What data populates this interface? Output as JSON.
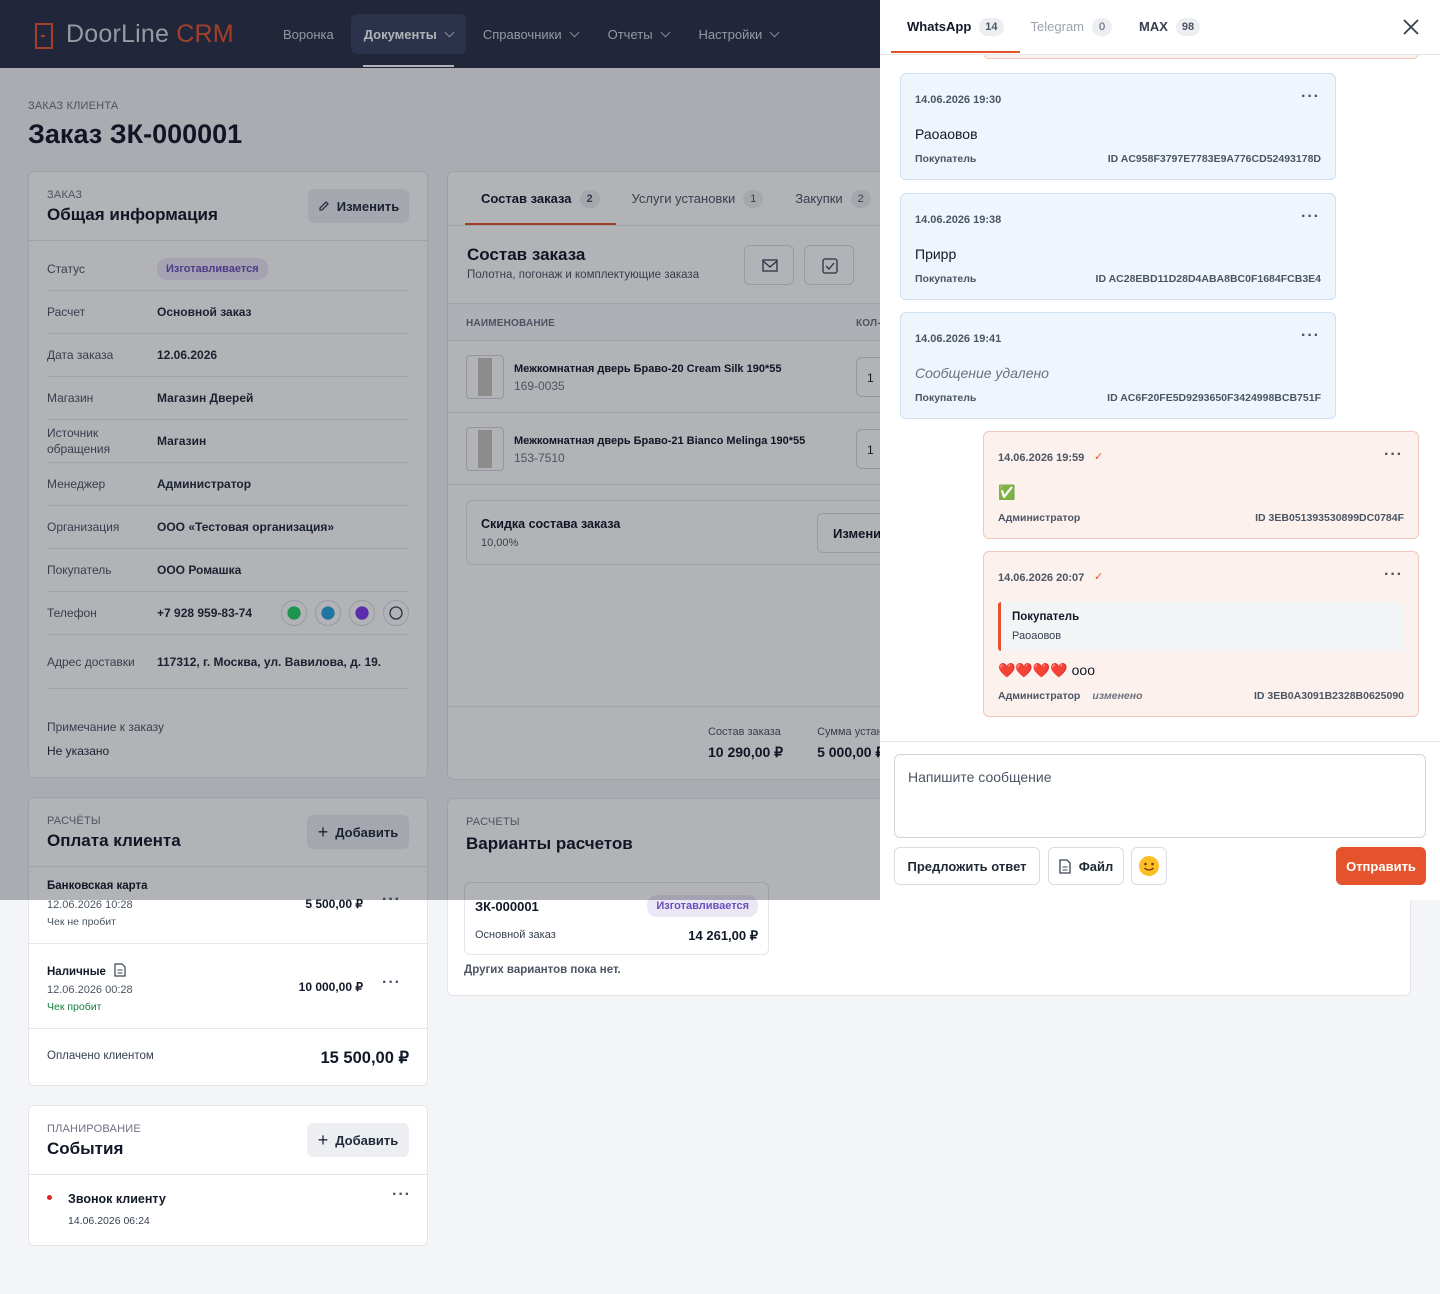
{
  "header": {
    "brand": "DoorLine",
    "brand_accent": "CRM",
    "nav": [
      "Воронка",
      "Документы",
      "Справочники",
      "Отчеты",
      "Настройки"
    ]
  },
  "page": {
    "eyebrow": "ЗАКАЗ КЛИЕНТА",
    "title": "Заказ ЗК-000001"
  },
  "general": {
    "eyebrow": "ЗАКАЗ",
    "title": "Общая информация",
    "edit": "Изменить",
    "fields": [
      {
        "label": "Статус",
        "value": "Изготавливается"
      },
      {
        "label": "Расчет",
        "value": "Основной заказ"
      },
      {
        "label": "Дата заказа",
        "value": "12.06.2026"
      },
      {
        "label": "Магазин",
        "value": "Магазин Дверей"
      },
      {
        "label": "Источник обращения",
        "value": "Магазин"
      },
      {
        "label": "Менеджер",
        "value": "Администратор"
      },
      {
        "label": "Организация",
        "value": "ООО «Тестовая организация»"
      },
      {
        "label": "Покупатель",
        "value": "ООО Ромашка"
      },
      {
        "label": "Телефон",
        "value": "+7 928 959-83-74"
      },
      {
        "label": "Адрес доставки",
        "value": "117312, г. Москва, ул. Вавилова, д. 19."
      }
    ],
    "note_label": "Примечание к заказу",
    "note_value": "Не указано"
  },
  "order": {
    "tabs": [
      {
        "label": "Состав заказа",
        "count": 2
      },
      {
        "label": "Услуги установки",
        "count": 1
      },
      {
        "label": "Закупки",
        "count": 2
      }
    ],
    "title": "Состав заказа",
    "subtitle": "Полотна, погонаж и комплектующие заказа",
    "columns": [
      "НАИМЕНОВАНИЕ",
      "КОЛ-ВО"
    ],
    "items": [
      {
        "name": "Межкомнатная дверь Браво-20 Cream Silk 190*55",
        "sku": "169-0035",
        "qty": 1
      },
      {
        "name": "Межкомнатная дверь Браво-21 Bianco Melinga 190*55",
        "sku": "153-7510",
        "qty": 1
      }
    ],
    "discount": {
      "title": "Скидка состава заказа",
      "value": "10,00%",
      "button": "Изменить"
    },
    "totals": [
      {
        "label": "Состав заказа",
        "value": "10 290,00 ₽"
      },
      {
        "label": "Сумма установки",
        "value": "5 000,00 ₽"
      }
    ]
  },
  "payments": {
    "eyebrow": "РАСЧЁТЫ",
    "title": "Оплата клиента",
    "add": "Добавить",
    "items": [
      {
        "method": "Банковская карта",
        "date": "12.06.2026 10:28",
        "receipt": "Чек не пробит",
        "receipt_printed": false,
        "amount": "5 500,00 ₽"
      },
      {
        "method": "Наличные",
        "date": "12.06.2026 00:28",
        "receipt": "Чек пробит",
        "receipt_printed": true,
        "amount": "10 000,00 ₽"
      }
    ],
    "total_label": "Оплачено клиентом",
    "total": "15 500,00 ₽"
  },
  "variants": {
    "eyebrow": "РАСЧЕТЫ",
    "title": "Варианты расчетов",
    "card": {
      "number": "ЗК-000001",
      "status": "Изготавливается",
      "type": "Основной заказ",
      "amount": "14 261,00 ₽"
    },
    "empty": "Других вариантов пока нет."
  },
  "events": {
    "eyebrow": "ПЛАНИРОВАНИЕ",
    "title": "События",
    "add": "Добавить",
    "items": [
      {
        "title": "Звонок клиенту",
        "date": "14.06.2026 06:24"
      }
    ]
  },
  "chat": {
    "tabs": [
      {
        "label": "WhatsApp",
        "count": 14
      },
      {
        "label": "Telegram",
        "count": 0
      },
      {
        "label": "MAX",
        "count": 98
      }
    ],
    "messages": [
      {
        "time": "14.06.2026 19:30",
        "text": "Раоаовов",
        "author": "Покупатель",
        "id": "ID AC958F3797E7783E9A776CD52493178D"
      },
      {
        "time": "14.06.2026 19:38",
        "text": "Прирр",
        "author": "Покупатель",
        "id": "ID AC28EBD11D28D4ABA8BC0F1684FCB3E4"
      },
      {
        "time": "14.06.2026 19:41",
        "text": "Сообщение удалено",
        "deleted": true,
        "author": "Покупатель",
        "id": "ID AC6F20FE5D9293650F3424998BCB751F"
      },
      {
        "time": "14.06.2026 19:59",
        "text": "✅",
        "author": "Администратор",
        "id": "ID 3EB051393530899DC0784F"
      },
      {
        "time": "14.06.2026 20:07",
        "quote": {
          "author": "Покупатель",
          "text": "Раоаовов"
        },
        "text": "❤️❤️❤️❤️ ооо",
        "author": "Администратор",
        "edited": "изменено",
        "id": "ID 3EB0A3091B2328B0625090"
      }
    ],
    "placeholder": "Напишите сообщение",
    "suggest": "Предложить ответ",
    "file": "Файл",
    "send": "Отправить"
  }
}
